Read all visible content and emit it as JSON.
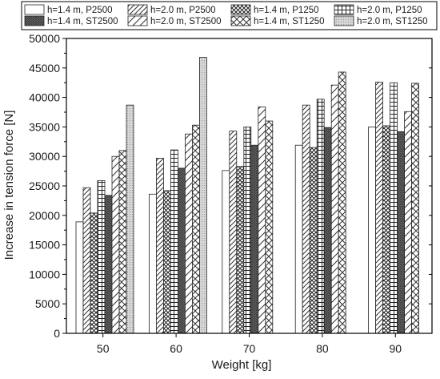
{
  "chart_data": {
    "type": "bar",
    "xlabel": "Weight [kg]",
    "ylabel": "Increase in tension force [N]",
    "ylim": [
      0,
      50000
    ],
    "yticks": [
      0,
      5000,
      10000,
      15000,
      20000,
      25000,
      30000,
      35000,
      40000,
      45000,
      50000
    ],
    "categories": [
      "50",
      "60",
      "70",
      "80",
      "90"
    ],
    "legend_position": "top",
    "grid": false,
    "series": [
      {
        "name": "h=1.4 m, P2500",
        "pattern": "blank",
        "values": [
          18900,
          23600,
          27600,
          31900,
          35000
        ]
      },
      {
        "name": "h=2.0 m, P2500",
        "pattern": "diag",
        "values": [
          24700,
          29700,
          34300,
          38700,
          42600
        ]
      },
      {
        "name": "h=1.4 m, P1250",
        "pattern": "crosshatch",
        "values": [
          20400,
          24200,
          28300,
          31500,
          35200
        ]
      },
      {
        "name": "h=2.0 m, P1250",
        "pattern": "grid",
        "values": [
          25900,
          31100,
          35000,
          39700,
          42500
        ]
      },
      {
        "name": "h=1.4 m, ST2500",
        "pattern": "dense",
        "values": [
          23400,
          28000,
          31900,
          34900,
          34200
        ]
      },
      {
        "name": "h=2.0 m, ST2500",
        "pattern": "diag-sparse",
        "values": [
          30000,
          33800,
          38400,
          42100,
          37600
        ]
      },
      {
        "name": "h=1.4 m, ST1250",
        "pattern": "diamond",
        "values": [
          31000,
          35300,
          36000,
          44300,
          42400
        ]
      },
      {
        "name": "h=2.0 m, ST1250",
        "pattern": "dots",
        "values": [
          38700,
          46800,
          null,
          null,
          null
        ]
      }
    ]
  }
}
